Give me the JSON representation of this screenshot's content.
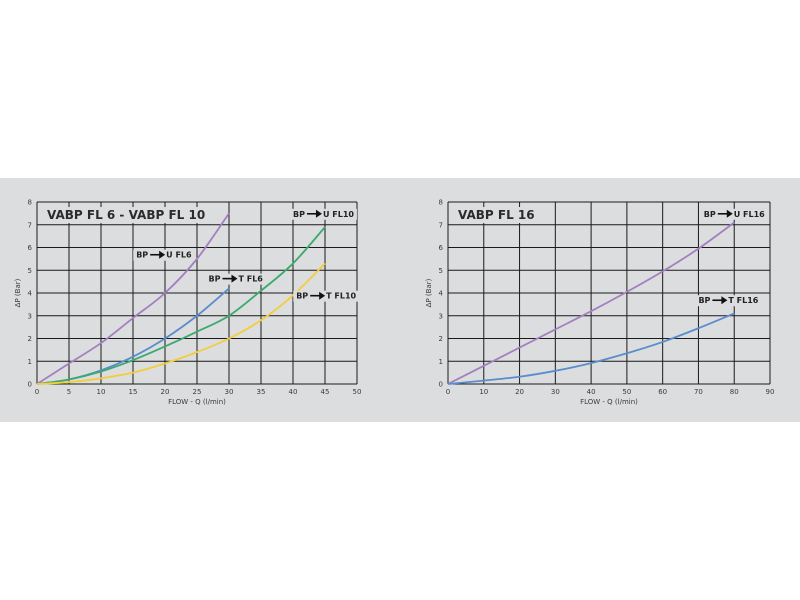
{
  "chart_data": [
    {
      "type": "line",
      "title": "VABP FL 6 - VABP FL 10",
      "xlabel": "FLOW - Q (l/min)",
      "ylabel": "ΔP (Bar)",
      "xlim": [
        0,
        50
      ],
      "ylim": [
        0,
        8
      ],
      "xticks": [
        0,
        5,
        10,
        15,
        20,
        25,
        30,
        35,
        40,
        45,
        50
      ],
      "yticks": [
        0,
        1,
        2,
        3,
        4,
        5,
        6,
        7,
        8
      ],
      "grid": true,
      "series": [
        {
          "color": "#a47fc0",
          "x": [
            0,
            5,
            10,
            15,
            20,
            25,
            30
          ],
          "y": [
            0,
            0.9,
            1.8,
            2.9,
            4.0,
            5.5,
            7.5
          ]
        },
        {
          "color": "#5b8ccc",
          "x": [
            0,
            5,
            10,
            15,
            20,
            25,
            30
          ],
          "y": [
            0,
            0.2,
            0.6,
            1.2,
            2.0,
            3.0,
            4.2
          ]
        },
        {
          "color": "#3aaa6e",
          "x": [
            0,
            5,
            10,
            15,
            20,
            25,
            30,
            35,
            40,
            45
          ],
          "y": [
            0,
            0.2,
            0.55,
            1.05,
            1.65,
            2.3,
            3.0,
            4.1,
            5.3,
            6.9
          ]
        },
        {
          "color": "#f2cd3c",
          "x": [
            0,
            5,
            10,
            15,
            20,
            25,
            30,
            35,
            40,
            45
          ],
          "y": [
            0,
            0.08,
            0.25,
            0.5,
            0.9,
            1.4,
            2.0,
            2.8,
            3.9,
            5.3
          ]
        }
      ],
      "annotations": [
        {
          "from": "BP",
          "to": "U FL6",
          "x": 15.5,
          "y": 5.55
        },
        {
          "from": "BP",
          "to": "T FL6",
          "x": 26.8,
          "y": 4.5
        },
        {
          "from": "BP",
          "to": "U FL10",
          "x": 40.0,
          "y": 7.35
        },
        {
          "from": "BP",
          "to": "T FL10",
          "x": 40.5,
          "y": 3.75
        }
      ]
    },
    {
      "type": "line",
      "title": "VABP FL 16",
      "xlabel": "FLOW - Q (l/min)",
      "ylabel": "ΔP (Bar)",
      "xlim": [
        0,
        90
      ],
      "ylim": [
        0,
        8
      ],
      "xticks": [
        0,
        10,
        20,
        30,
        40,
        50,
        60,
        70,
        80,
        90
      ],
      "yticks": [
        0,
        1,
        2,
        3,
        4,
        5,
        6,
        7,
        8
      ],
      "grid": true,
      "series": [
        {
          "color": "#a47fc0",
          "x": [
            0,
            10,
            20,
            30,
            40,
            50,
            60,
            70,
            80
          ],
          "y": [
            0,
            0.8,
            1.6,
            2.4,
            3.2,
            4.05,
            4.95,
            5.95,
            7.1
          ]
        },
        {
          "color": "#5b8ccc",
          "x": [
            0,
            10,
            20,
            30,
            40,
            50,
            60,
            70,
            80
          ],
          "y": [
            0,
            0.15,
            0.32,
            0.58,
            0.92,
            1.35,
            1.85,
            2.45,
            3.1
          ]
        }
      ],
      "annotations": [
        {
          "from": "BP",
          "to": "U FL16",
          "x": 71.5,
          "y": 7.35
        },
        {
          "from": "BP",
          "to": "T FL16",
          "x": 70.0,
          "y": 3.55
        }
      ]
    }
  ]
}
